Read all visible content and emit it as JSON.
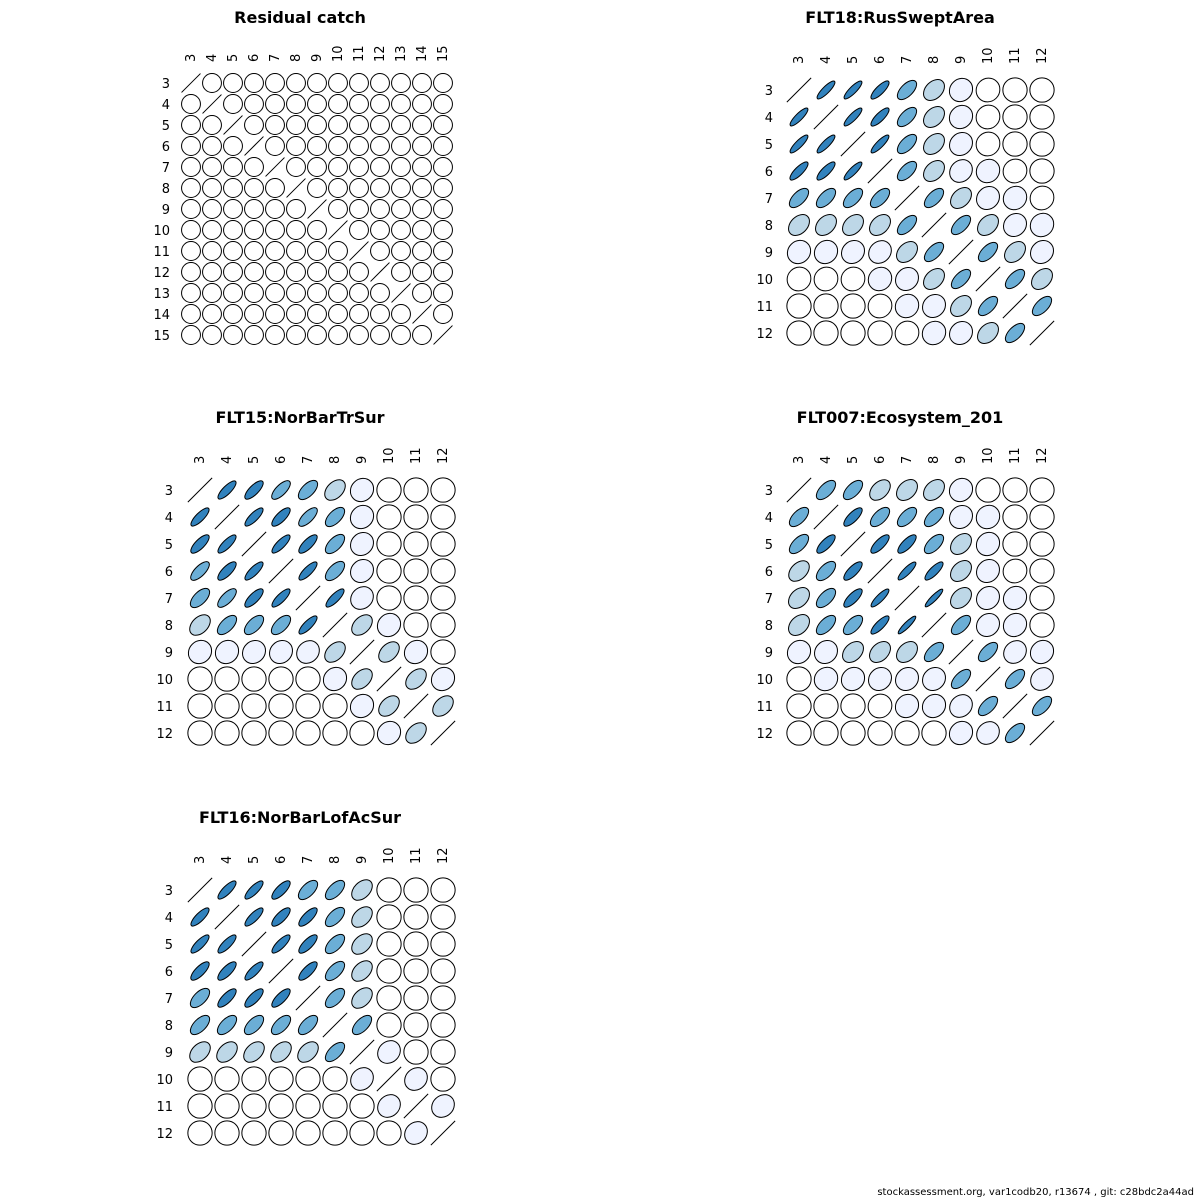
{
  "footer": "stockassessment.org, var1codb20, r13674 , git: c28bdc2a44ad",
  "color_scale": {
    "1": "#ffffff",
    "2": "#eff3ff",
    "3": "#bdd7e7",
    "4": "#6baed6",
    "5": "#3182bd"
  },
  "chart_data": [
    {
      "type": "heatmap",
      "title": "Residual catch",
      "labels": [
        "3",
        "4",
        "5",
        "6",
        "7",
        "8",
        "9",
        "10",
        "11",
        "12",
        "13",
        "14",
        "15"
      ],
      "matrix": [
        [
          1,
          0,
          0,
          0,
          0,
          0,
          0,
          0,
          0,
          0,
          0,
          0,
          0
        ],
        [
          0,
          1,
          0,
          0,
          0,
          0,
          0,
          0,
          0,
          0,
          0,
          0,
          0
        ],
        [
          0,
          0,
          1,
          0,
          0,
          0,
          0,
          0,
          0,
          0,
          0,
          0,
          0
        ],
        [
          0,
          0,
          0,
          1,
          0,
          0,
          0,
          0,
          0,
          0,
          0,
          0,
          0
        ],
        [
          0,
          0,
          0,
          0,
          1,
          0,
          0,
          0,
          0,
          0,
          0,
          0,
          0
        ],
        [
          0,
          0,
          0,
          0,
          0,
          1,
          0,
          0,
          0,
          0,
          0,
          0,
          0
        ],
        [
          0,
          0,
          0,
          0,
          0,
          0,
          1,
          0,
          0,
          0,
          0,
          0,
          0
        ],
        [
          0,
          0,
          0,
          0,
          0,
          0,
          0,
          1,
          0,
          0,
          0,
          0,
          0
        ],
        [
          0,
          0,
          0,
          0,
          0,
          0,
          0,
          0,
          1,
          0,
          0,
          0,
          0
        ],
        [
          0,
          0,
          0,
          0,
          0,
          0,
          0,
          0,
          0,
          1,
          0,
          0,
          0
        ],
        [
          0,
          0,
          0,
          0,
          0,
          0,
          0,
          0,
          0,
          0,
          1,
          0,
          0
        ],
        [
          0,
          0,
          0,
          0,
          0,
          0,
          0,
          0,
          0,
          0,
          0,
          1,
          0
        ],
        [
          0,
          0,
          0,
          0,
          0,
          0,
          0,
          0,
          0,
          0,
          0,
          0,
          1
        ]
      ]
    },
    {
      "type": "heatmap",
      "title": "FLT18:RusSweptArea",
      "labels": [
        "3",
        "4",
        "5",
        "6",
        "7",
        "8",
        "9",
        "10",
        "11",
        "12"
      ],
      "matrix": [
        [
          1,
          0.85,
          0.85,
          0.8,
          0.6,
          0.35,
          0.1,
          0.05,
          0,
          0
        ],
        [
          0.85,
          1,
          0.85,
          0.8,
          0.6,
          0.35,
          0.1,
          0.05,
          0,
          0
        ],
        [
          0.85,
          0.85,
          1,
          0.85,
          0.6,
          0.35,
          0.12,
          0.05,
          0,
          0
        ],
        [
          0.8,
          0.8,
          0.85,
          1,
          0.6,
          0.35,
          0.15,
          0.08,
          0.05,
          0
        ],
        [
          0.6,
          0.6,
          0.6,
          0.6,
          1,
          0.6,
          0.35,
          0.12,
          0.08,
          0.05
        ],
        [
          0.35,
          0.35,
          0.35,
          0.35,
          0.6,
          1,
          0.6,
          0.35,
          0.12,
          0.08
        ],
        [
          0.1,
          0.1,
          0.12,
          0.15,
          0.35,
          0.6,
          1,
          0.6,
          0.35,
          0.12
        ],
        [
          0.05,
          0.05,
          0.05,
          0.08,
          0.12,
          0.35,
          0.6,
          1,
          0.6,
          0.35
        ],
        [
          0,
          0,
          0,
          0.05,
          0.08,
          0.12,
          0.35,
          0.6,
          1,
          0.6
        ],
        [
          0,
          0,
          0,
          0,
          0.05,
          0.08,
          0.12,
          0.35,
          0.6,
          1
        ]
      ]
    },
    {
      "type": "heatmap",
      "title": "FLT15:NorBarTrSur",
      "labels": [
        "3",
        "4",
        "5",
        "6",
        "7",
        "8",
        "9",
        "10",
        "11",
        "12"
      ],
      "matrix": [
        [
          1,
          0.8,
          0.75,
          0.7,
          0.6,
          0.4,
          0.1,
          0,
          0,
          0
        ],
        [
          0.8,
          1,
          0.8,
          0.75,
          0.7,
          0.6,
          0.1,
          0,
          0,
          0
        ],
        [
          0.75,
          0.8,
          1,
          0.8,
          0.75,
          0.6,
          0.12,
          0,
          0,
          0
        ],
        [
          0.7,
          0.75,
          0.8,
          1,
          0.8,
          0.6,
          0.12,
          0,
          0,
          0
        ],
        [
          0.6,
          0.7,
          0.75,
          0.8,
          1,
          0.8,
          0.15,
          0,
          0,
          0
        ],
        [
          0.4,
          0.6,
          0.6,
          0.6,
          0.8,
          1,
          0.4,
          0.1,
          0,
          0
        ],
        [
          0.1,
          0.1,
          0.12,
          0.12,
          0.15,
          0.4,
          1,
          0.4,
          0.1,
          0
        ],
        [
          0,
          0,
          0,
          0,
          0,
          0.1,
          0.4,
          1,
          0.4,
          0.1
        ],
        [
          0,
          0,
          0,
          0,
          0,
          0,
          0.1,
          0.4,
          1,
          0.4
        ],
        [
          0,
          0,
          0,
          0,
          0,
          0,
          0,
          0.1,
          0.4,
          1
        ]
      ]
    },
    {
      "type": "heatmap",
      "title": "FLT007:Ecosystem_201",
      "labels": [
        "3",
        "4",
        "5",
        "6",
        "7",
        "8",
        "9",
        "10",
        "11",
        "12"
      ],
      "matrix": [
        [
          1,
          0.6,
          0.6,
          0.4,
          0.35,
          0.35,
          0.1,
          0,
          0,
          0
        ],
        [
          0.6,
          1,
          0.75,
          0.6,
          0.6,
          0.6,
          0.12,
          0.08,
          0,
          0
        ],
        [
          0.6,
          0.75,
          1,
          0.75,
          0.75,
          0.6,
          0.35,
          0.1,
          0,
          0
        ],
        [
          0.4,
          0.6,
          0.75,
          1,
          0.85,
          0.8,
          0.35,
          0.12,
          0.05,
          0
        ],
        [
          0.35,
          0.6,
          0.75,
          0.85,
          1,
          0.9,
          0.35,
          0.12,
          0.1,
          0
        ],
        [
          0.35,
          0.6,
          0.6,
          0.8,
          0.9,
          1,
          0.6,
          0.12,
          0.1,
          0
        ],
        [
          0.1,
          0.12,
          0.35,
          0.35,
          0.35,
          0.6,
          1,
          0.6,
          0.15,
          0.1
        ],
        [
          0,
          0.08,
          0.1,
          0.12,
          0.12,
          0.12,
          0.6,
          1,
          0.6,
          0.15
        ],
        [
          0,
          0,
          0,
          0.05,
          0.1,
          0.1,
          0.15,
          0.6,
          1,
          0.6
        ],
        [
          0,
          0,
          0,
          0,
          0,
          0,
          0.1,
          0.15,
          0.6,
          1
        ]
      ]
    },
    {
      "type": "heatmap",
      "title": "FLT16:NorBarLofAcSur",
      "labels": [
        "3",
        "4",
        "5",
        "6",
        "7",
        "8",
        "9",
        "10",
        "11",
        "12"
      ],
      "matrix": [
        [
          1,
          0.8,
          0.8,
          0.75,
          0.6,
          0.6,
          0.4,
          0,
          0,
          0
        ],
        [
          0.8,
          1,
          0.8,
          0.75,
          0.75,
          0.6,
          0.4,
          0,
          0,
          0
        ],
        [
          0.8,
          0.8,
          1,
          0.8,
          0.75,
          0.6,
          0.4,
          0,
          0,
          0
        ],
        [
          0.75,
          0.75,
          0.8,
          1,
          0.75,
          0.6,
          0.4,
          0,
          0,
          0
        ],
        [
          0.6,
          0.75,
          0.75,
          0.75,
          1,
          0.6,
          0.4,
          0,
          0,
          0
        ],
        [
          0.6,
          0.6,
          0.6,
          0.6,
          0.6,
          1,
          0.6,
          0,
          0,
          0
        ],
        [
          0.4,
          0.4,
          0.4,
          0.4,
          0.4,
          0.6,
          1,
          0.15,
          0,
          0
        ],
        [
          0,
          0,
          0,
          0,
          0,
          0,
          0.15,
          1,
          0.15,
          0
        ],
        [
          0,
          0,
          0,
          0,
          0,
          0,
          0,
          0.15,
          1,
          0.15
        ],
        [
          0,
          0,
          0,
          0,
          0,
          0,
          0,
          0,
          0.15,
          1
        ]
      ]
    }
  ]
}
